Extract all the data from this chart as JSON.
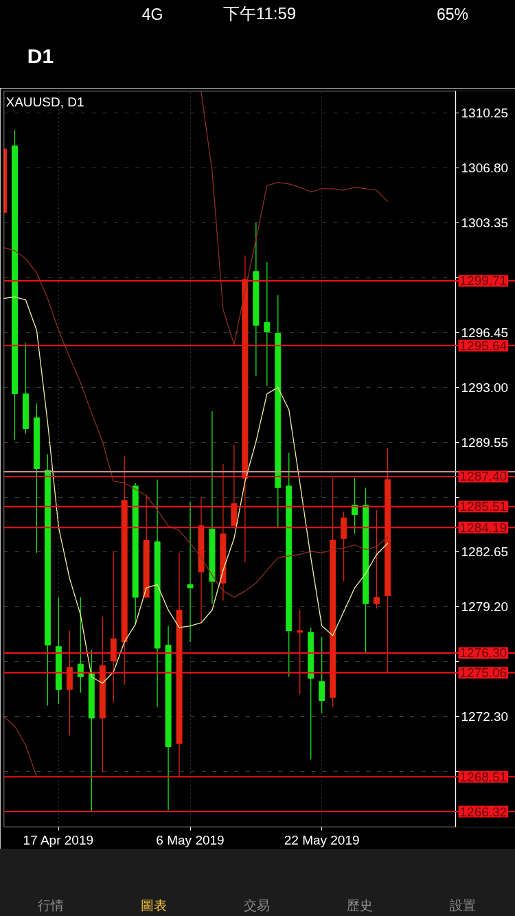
{
  "chart_data": {
    "type": "candlestick",
    "title": "XAUUSD, D1",
    "annotations": [
      "4G",
      "下午11:59",
      "65%",
      "D1",
      "行情",
      "圖表",
      "交易",
      "歷史",
      "設置"
    ],
    "categories": [
      null,
      null,
      null,
      null,
      null,
      "17 Apr 2019",
      null,
      null,
      null,
      null,
      null,
      null,
      null,
      null,
      null,
      null,
      null,
      "6 May 2019",
      null,
      null,
      null,
      null,
      null,
      null,
      null,
      null,
      null,
      null,
      null,
      "22 May 2019",
      null,
      null,
      null,
      null,
      null,
      null
    ],
    "ohlc": [
      [
        1308.0,
        1308.0,
        1304.0,
        1304.0
      ],
      [
        1292.6,
        1309.2,
        1289.7,
        1308.2
      ],
      [
        1290.4,
        1295.8,
        1290.1,
        1292.6
      ],
      [
        1287.9,
        1292.0,
        1282.6,
        1291.1
      ],
      [
        1276.8,
        1288.8,
        1273.0,
        1287.8
      ],
      [
        1274.0,
        1279.8,
        1273.1,
        1276.7
      ],
      [
        1275.4,
        1277.7,
        1271.1,
        1274.0
      ],
      [
        1274.8,
        1279.8,
        1273.8,
        1275.6
      ],
      [
        1272.2,
        1276.5,
        1266.3,
        1275.0
      ],
      [
        1275.5,
        1278.6,
        1268.8,
        1272.2
      ],
      [
        1277.2,
        1282.7,
        1273.2,
        1275.8
      ],
      [
        1285.9,
        1288.7,
        1274.3,
        1277.0
      ],
      [
        1279.8,
        1287.0,
        1278.1,
        1286.8
      ],
      [
        1283.4,
        1286.2,
        1279.8,
        1279.8
      ],
      [
        1276.6,
        1287.2,
        1272.9,
        1283.3
      ],
      [
        1270.4,
        1278.0,
        1266.4,
        1276.8
      ],
      [
        1279.0,
        1282.6,
        1268.5,
        1270.6
      ],
      [
        1280.4,
        1285.8,
        1277.0,
        1280.6
      ],
      [
        1284.3,
        1286.1,
        1278.3,
        1281.4
      ],
      [
        1280.8,
        1291.5,
        1279.4,
        1284.1
      ],
      [
        1283.8,
        1288.2,
        1279.6,
        1280.7
      ],
      [
        1285.7,
        1289.4,
        1284.3,
        1284.3
      ],
      [
        1299.8,
        1301.3,
        1282.0,
        1287.3
      ],
      [
        1296.9,
        1303.4,
        1293.7,
        1300.3
      ],
      [
        1296.5,
        1300.9,
        1293.1,
        1297.1
      ],
      [
        1286.7,
        1298.8,
        1284.2,
        1296.4
      ],
      [
        1277.7,
        1288.9,
        1274.8,
        1286.8
      ],
      [
        1277.7,
        1279.0,
        1273.7,
        1277.6
      ],
      [
        1274.7,
        1277.9,
        1269.6,
        1277.6
      ],
      [
        1273.3,
        1277.3,
        1272.5,
        1274.5
      ],
      [
        1283.4,
        1287.3,
        1272.9,
        1273.5
      ],
      [
        1284.8,
        1285.2,
        1280.8,
        1283.5
      ],
      [
        1285.0,
        1287.3,
        1283.8,
        1285.6
      ],
      [
        1279.4,
        1286.7,
        1276.3,
        1285.6
      ],
      [
        1279.8,
        1285.3,
        1279.1,
        1279.4
      ],
      [
        1287.2,
        1289.2,
        1275.0,
        1279.9
      ]
    ],
    "colors": [
      "#e2230f",
      "#19e619",
      "#19e619",
      "#19e619",
      "#19e619",
      "#19e619",
      "#e2230f",
      "#19e619",
      "#19e619",
      "#e2230f",
      "#e2230f",
      "#e2230f",
      "#19e619",
      "#e2230f",
      "#19e619",
      "#19e619",
      "#e2230f",
      "#19e619",
      "#e2230f",
      "#19e619",
      "#e2230f",
      "#e2230f",
      "#e2230f",
      "#19e619",
      "#19e619",
      "#19e619",
      "#19e619",
      "#e2230f",
      "#19e619",
      "#19e619",
      "#e2230f",
      "#e2230f",
      "#19e619",
      "#19e619",
      "#e2230f",
      "#e2230f"
    ],
    "series": [
      {
        "type": "line",
        "color": "#8a2e22",
        "values": [
          null,
          null,
          null,
          null,
          null,
          null,
          null,
          null,
          null,
          null,
          null,
          null,
          null,
          null,
          null,
          null,
          null,
          null,
          1311.6,
          1306.6,
          1297.9,
          1295.7,
          1299.1,
          1302.3,
          1305.7,
          1305.9,
          1305.8,
          1305.6,
          1305.3,
          1305.5,
          1305.5,
          1305.4,
          1305.6,
          1305.5,
          1305.4,
          1304.7
        ]
      },
      {
        "type": "line",
        "color": "#8a2e22",
        "values": [
          1301.8,
          1301.6,
          1301.1,
          1300.2,
          1298.6,
          1296.6,
          1294.9,
          1293.3,
          1291.4,
          1289.6,
          1287.1,
          1287.0,
          1286.6,
          1286.2,
          1285.3,
          1284.3,
          1284.0,
          1283.2,
          1282.3,
          1281.2,
          1280.2,
          1279.8,
          1280.2,
          1280.7,
          1281.5,
          1282.3,
          1282.4,
          1282.5,
          1282.7,
          1282.6,
          1282.8,
          1282.9,
          1283.1,
          1282.8,
          1283.0,
          1283.6
        ]
      },
      {
        "type": "line",
        "color": "#8a2e22",
        "values": [
          1272.3,
          1271.7,
          1270.5,
          1268.5,
          null,
          null,
          null,
          null,
          null,
          null,
          null,
          null,
          null,
          null,
          null,
          null,
          null,
          null,
          null,
          null,
          null,
          null,
          null,
          null,
          null,
          null,
          null,
          null,
          null,
          null,
          null,
          null,
          null,
          null,
          null,
          null
        ]
      },
      {
        "type": "line",
        "color": "#f2f29c",
        "values": [
          1298.6,
          1298.7,
          1298.5,
          1296.6,
          1290.8,
          1284.2,
          1281.0,
          1278.7,
          1274.8,
          1274.4,
          1275.1,
          1277.0,
          1278.1,
          1280.4,
          1280.6,
          1279.0,
          1277.9,
          1278.0,
          1278.2,
          1279.0,
          1281.5,
          1283.5,
          1287.1,
          1289.6,
          1292.6,
          1293.0,
          1291.6,
          1287.0,
          1282.3,
          1278.0,
          1277.4,
          1278.9,
          1280.4,
          1281.3,
          1282.5,
          1283.2
        ]
      }
    ],
    "ref_lines": [
      {
        "axis": "y",
        "value": 1287.7,
        "color": "#c89292"
      },
      {
        "axis": "y",
        "value": 1299.71,
        "label": "1299.71",
        "color": "#f0121a"
      },
      {
        "axis": "y",
        "value": 1295.64,
        "label": "1295.64",
        "color": "#f0121a"
      },
      {
        "axis": "y",
        "value": 1287.4,
        "label": "1287.40",
        "color": "#f0121a"
      },
      {
        "axis": "y",
        "value": 1285.51,
        "label": "1285.51",
        "color": "#f0121a"
      },
      {
        "axis": "y",
        "value": 1284.19,
        "label": "1284.19",
        "color": "#f0121a"
      },
      {
        "axis": "y",
        "value": 1276.3,
        "label": "1276.30",
        "color": "#f0121a"
      },
      {
        "axis": "y",
        "value": 1275.06,
        "label": "1275.06",
        "color": "#f0121a"
      },
      {
        "axis": "y",
        "value": 1268.51,
        "label": "1268.51",
        "color": "#f0121a"
      },
      {
        "axis": "y",
        "value": 1266.32,
        "label": "1266.32",
        "color": "#f0121a"
      }
    ],
    "ylim": [
      1265.35,
      1311.65
    ],
    "yticks": [
      1310.25,
      {
        "value": 1306.8,
        "label": "1306.80"
      },
      1303.35,
      {
        "value": 1299.9,
        "label": null
      },
      1296.45,
      {
        "value": 1293.0,
        "label": "1293.00"
      },
      1289.55,
      {
        "value": 1286.1,
        "label": null
      },
      1282.65,
      {
        "value": 1279.2,
        "label": "1279.20"
      },
      {
        "value": 1275.75,
        "label": null
      },
      {
        "value": 1272.3,
        "label": "1272.30"
      },
      {
        "value": 1268.85,
        "label": null
      }
    ],
    "grid": true
  }
}
